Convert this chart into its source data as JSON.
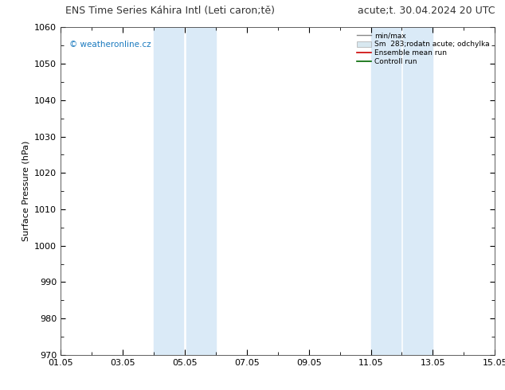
{
  "title_left": "ENS Time Series Káhira Intl (Leti caron;tě)",
  "title_right": "acute;t. 30.04.2024 20 UTC",
  "ylabel": "Surface Pressure (hPa)",
  "ylim": [
    970,
    1060
  ],
  "yticks": [
    970,
    980,
    990,
    1000,
    1010,
    1020,
    1030,
    1040,
    1050,
    1060
  ],
  "xlim": [
    0,
    14
  ],
  "xtick_labels": [
    "01.05",
    "03.05",
    "05.05",
    "07.05",
    "09.05",
    "11.05",
    "13.05",
    "15.05"
  ],
  "xtick_positions": [
    0,
    2,
    4,
    6,
    8,
    10,
    12,
    14
  ],
  "shaded_bands": [
    {
      "x_start": 3.0,
      "x_end": 3.95,
      "divider": 3.5
    },
    {
      "x_start": 4.05,
      "x_end": 5.0,
      "divider": null
    },
    {
      "x_start": 10.0,
      "x_end": 10.95,
      "divider": 10.5
    },
    {
      "x_start": 11.05,
      "x_end": 12.0,
      "divider": null
    }
  ],
  "shade_color": "#daeaf7",
  "shade_alpha": 1.0,
  "divider_color": "#c0d8ee",
  "watermark": "© weatheronline.cz",
  "watermark_color": "#1a7abf",
  "bg_color": "#ffffff",
  "plot_bg_color": "#ffffff",
  "title_fontsize": 9,
  "tick_fontsize": 8,
  "ylabel_fontsize": 8
}
